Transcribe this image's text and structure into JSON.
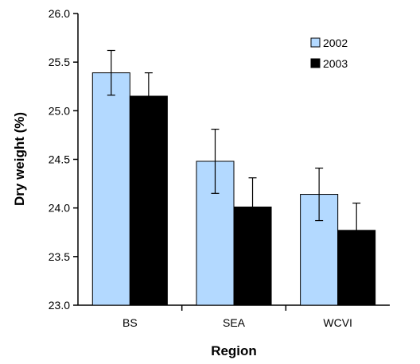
{
  "chart_data": {
    "type": "bar",
    "title": "",
    "xlabel": "Region",
    "ylabel": "Dry weight (%)",
    "ylim": [
      23.0,
      26.0
    ],
    "ytick_step": 0.5,
    "yticks": [
      "23.0",
      "23.5",
      "24.0",
      "24.5",
      "25.0",
      "25.5",
      "26.0"
    ],
    "categories": [
      "BS",
      "SEA",
      "WCVI"
    ],
    "error_bars": true,
    "legend_position": "top-right",
    "series": [
      {
        "name": "2002",
        "values": [
          25.39,
          24.48,
          24.14
        ],
        "error": [
          0.23,
          0.33,
          0.27
        ],
        "color": "#b3d9ff"
      },
      {
        "name": "2003",
        "values": [
          25.15,
          24.01,
          23.77
        ],
        "error": [
          0.24,
          0.3,
          0.28
        ],
        "color": "#000000"
      }
    ]
  }
}
